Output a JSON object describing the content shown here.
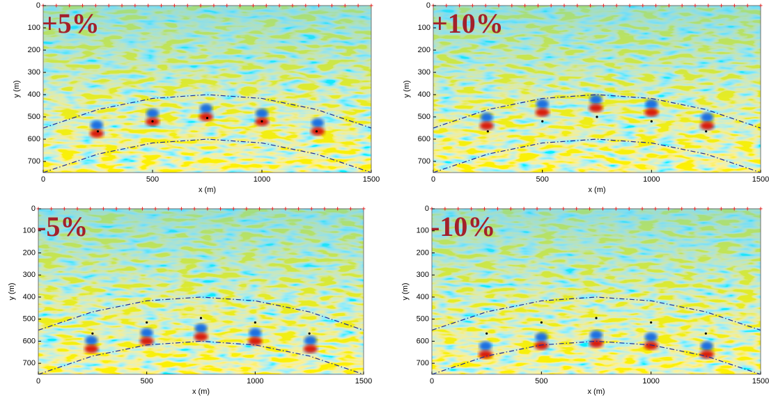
{
  "chart_data": [
    {
      "type": "image",
      "annotation": "+5%",
      "xlabel": "x (m)",
      "ylabel": "y (m)",
      "xlim": [
        0,
        1500
      ],
      "ylim": [
        0,
        750
      ],
      "y_inverted": true,
      "xticks": [
        0,
        500,
        1000,
        1500
      ],
      "yticks": [
        0,
        100,
        200,
        300,
        400,
        500,
        600,
        700
      ],
      "receivers_x": [
        0,
        60,
        120,
        180,
        240,
        300,
        360,
        420,
        480,
        540,
        600,
        660,
        720,
        780,
        840,
        900,
        960,
        1020,
        1080,
        1140,
        1200,
        1260,
        1320,
        1380,
        1440,
        1500
      ],
      "boundaries": [
        {
          "color": "#1a2a9a",
          "x": [
            0,
            250,
            500,
            750,
            1000,
            1250,
            1500
          ],
          "y": [
            550,
            467,
            417,
            400,
            417,
            467,
            550
          ]
        },
        {
          "color": "#1a2a9a",
          "x": [
            0,
            250,
            500,
            750,
            1000,
            1250,
            1500
          ],
          "y": [
            750,
            667,
            617,
            600,
            617,
            667,
            750
          ]
        }
      ],
      "sources": {
        "x": [
          250,
          500,
          750,
          1000,
          1250
        ],
        "y": [
          565,
          520,
          505,
          520,
          565
        ]
      },
      "peaks": {
        "x": [
          245,
          500,
          745,
          1000,
          1255
        ],
        "y": [
          575,
          522,
          500,
          522,
          565
        ]
      }
    },
    {
      "type": "image",
      "annotation": "+10%",
      "xlabel": "x (m)",
      "ylabel": "y (m)",
      "xlim": [
        0,
        1500
      ],
      "ylim": [
        0,
        750
      ],
      "y_inverted": true,
      "xticks": [
        0,
        500,
        1000,
        1500
      ],
      "yticks": [
        0,
        100,
        200,
        300,
        400,
        500,
        600,
        700
      ],
      "receivers_x": [
        0,
        60,
        120,
        180,
        240,
        300,
        360,
        420,
        480,
        540,
        600,
        660,
        720,
        780,
        840,
        900,
        960,
        1020,
        1080,
        1140,
        1200,
        1260,
        1320,
        1380,
        1440,
        1500
      ],
      "boundaries": [
        {
          "color": "#1a2a9a",
          "x": [
            0,
            250,
            500,
            750,
            1000,
            1250,
            1500
          ],
          "y": [
            550,
            467,
            417,
            400,
            417,
            467,
            550
          ]
        },
        {
          "color": "#1a2a9a",
          "x": [
            0,
            250,
            500,
            750,
            1000,
            1250,
            1500
          ],
          "y": [
            750,
            667,
            617,
            600,
            617,
            667,
            750
          ]
        }
      ],
      "sources": {
        "x": [
          250,
          500,
          750,
          1000,
          1250
        ],
        "y": [
          565,
          520,
          500,
          520,
          565
        ]
      },
      "peaks": {
        "x": [
          245,
          500,
          745,
          1000,
          1255
        ],
        "y": [
          540,
          480,
          460,
          480,
          540
        ]
      }
    },
    {
      "type": "image",
      "annotation": "-5%",
      "xlabel": "x (m)",
      "ylabel": "y (m)",
      "xlim": [
        0,
        1500
      ],
      "ylim": [
        0,
        750
      ],
      "y_inverted": true,
      "xticks": [
        0,
        500,
        1000,
        1500
      ],
      "yticks": [
        0,
        100,
        200,
        300,
        400,
        500,
        600,
        700
      ],
      "receivers_x": [
        0,
        60,
        120,
        180,
        240,
        300,
        360,
        420,
        480,
        540,
        600,
        660,
        720,
        780,
        840,
        900,
        960,
        1020,
        1080,
        1140,
        1200,
        1260,
        1320,
        1380,
        1440,
        1500
      ],
      "boundaries": [
        {
          "color": "#1a2a9a",
          "x": [
            0,
            250,
            500,
            750,
            1000,
            1250,
            1500
          ],
          "y": [
            550,
            467,
            417,
            400,
            417,
            467,
            550
          ]
        },
        {
          "color": "#1a2a9a",
          "x": [
            0,
            250,
            500,
            750,
            1000,
            1250,
            1500
          ],
          "y": [
            750,
            667,
            617,
            600,
            617,
            667,
            750
          ]
        }
      ],
      "sources": {
        "x": [
          250,
          500,
          750,
          1000,
          1250
        ],
        "y": [
          565,
          515,
          495,
          515,
          565
        ]
      },
      "peaks": {
        "x": [
          245,
          500,
          750,
          1000,
          1255
        ],
        "y": [
          635,
          600,
          580,
          600,
          635
        ]
      }
    },
    {
      "type": "image",
      "annotation": "-10%",
      "xlabel": "x (m)",
      "ylabel": "y (m)",
      "xlim": [
        0,
        1500
      ],
      "ylim": [
        0,
        750
      ],
      "y_inverted": true,
      "xticks": [
        0,
        500,
        1000,
        1500
      ],
      "yticks": [
        0,
        100,
        200,
        300,
        400,
        500,
        600,
        700
      ],
      "receivers_x": [
        0,
        60,
        120,
        180,
        240,
        300,
        360,
        420,
        480,
        540,
        600,
        660,
        720,
        780,
        840,
        900,
        960,
        1020,
        1080,
        1140,
        1200,
        1260,
        1320,
        1380,
        1440,
        1500
      ],
      "boundaries": [
        {
          "color": "#1a2a9a",
          "x": [
            0,
            250,
            500,
            750,
            1000,
            1250,
            1500
          ],
          "y": [
            550,
            467,
            417,
            400,
            417,
            467,
            550
          ]
        },
        {
          "color": "#1a2a9a",
          "x": [
            0,
            250,
            500,
            750,
            1000,
            1250,
            1500
          ],
          "y": [
            750,
            667,
            617,
            600,
            617,
            667,
            750
          ]
        }
      ],
      "sources": {
        "x": [
          250,
          500,
          750,
          1000,
          1250
        ],
        "y": [
          565,
          515,
          495,
          515,
          565
        ]
      },
      "peaks": {
        "x": [
          245,
          500,
          750,
          1000,
          1255
        ],
        "y": [
          660,
          620,
          610,
          620,
          660
        ]
      }
    }
  ]
}
